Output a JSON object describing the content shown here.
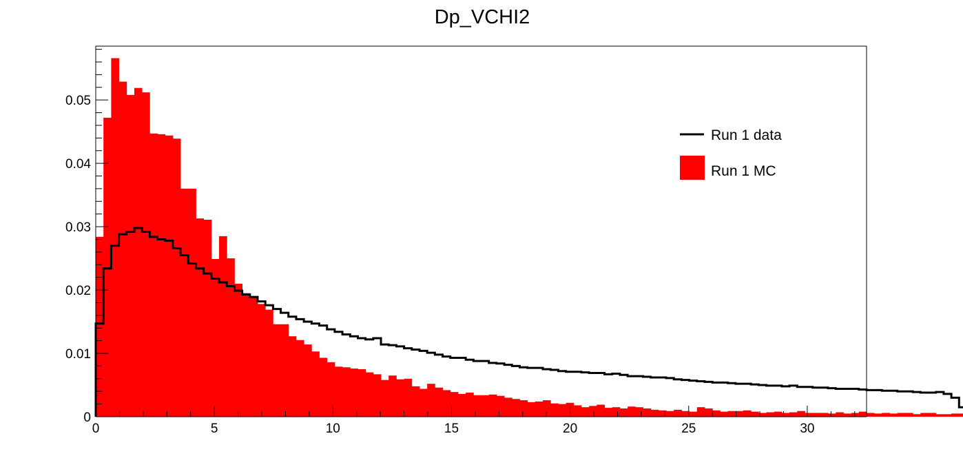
{
  "chart_data": {
    "type": "bar",
    "title": "Dp_VCHI2",
    "xlabel": "",
    "ylabel": "",
    "xlim": [
      0,
      32.5
    ],
    "ylim": [
      0,
      0.0585
    ],
    "x_ticks": [
      "0",
      "5",
      "10",
      "15",
      "20",
      "25",
      "30"
    ],
    "y_ticks": [
      "0",
      "0.01",
      "0.02",
      "0.03",
      "0.04",
      "0.05"
    ],
    "grid": false,
    "legend_position": "top-right",
    "bin_width": 0.325,
    "series": [
      {
        "name": "Run 1 data",
        "style": "step-line",
        "color": "#000000",
        "values": [
          0.0147,
          0.0234,
          0.027,
          0.0288,
          0.0292,
          0.0298,
          0.0292,
          0.0284,
          0.028,
          0.0278,
          0.0266,
          0.0255,
          0.0242,
          0.0234,
          0.0226,
          0.0218,
          0.0212,
          0.0206,
          0.0199,
          0.0193,
          0.0189,
          0.0182,
          0.0176,
          0.017,
          0.0164,
          0.0158,
          0.0154,
          0.015,
          0.0147,
          0.0144,
          0.0138,
          0.0134,
          0.013,
          0.0127,
          0.0124,
          0.0122,
          0.0124,
          0.0114,
          0.0113,
          0.0111,
          0.0108,
          0.0106,
          0.0104,
          0.0101,
          0.0098,
          0.0095,
          0.0093,
          0.0093,
          0.009,
          0.0088,
          0.0088,
          0.0085,
          0.0084,
          0.0082,
          0.008,
          0.0078,
          0.0077,
          0.0077,
          0.0075,
          0.0074,
          0.0072,
          0.0071,
          0.0071,
          0.007,
          0.0069,
          0.0069,
          0.0067,
          0.0068,
          0.0066,
          0.0064,
          0.0064,
          0.0063,
          0.0062,
          0.0062,
          0.0061,
          0.0059,
          0.0058,
          0.0057,
          0.0056,
          0.0055,
          0.0054,
          0.0054,
          0.0053,
          0.0052,
          0.0052,
          0.0051,
          0.005,
          0.0049,
          0.0049,
          0.0048,
          0.0049,
          0.0047,
          0.0047,
          0.0046,
          0.0046,
          0.0045,
          0.0044,
          0.0044,
          0.0044,
          0.0043,
          0.0042,
          0.0042,
          0.0041,
          0.0041,
          0.004,
          0.004,
          0.0039,
          0.0038,
          0.0038,
          0.0039,
          0.0036,
          0.003,
          0.0015,
          0,
          0,
          0,
          0,
          0,
          0,
          0
        ]
      },
      {
        "name": "Run 1 MC",
        "style": "filled",
        "color": "#ff0000",
        "values": [
          0.0284,
          0.0472,
          0.0566,
          0.0529,
          0.0508,
          0.0519,
          0.0512,
          0.0447,
          0.0446,
          0.0444,
          0.0439,
          0.036,
          0.036,
          0.0313,
          0.0311,
          0.0249,
          0.0285,
          0.025,
          0.021,
          0.0195,
          0.0189,
          0.0178,
          0.0169,
          0.0146,
          0.0146,
          0.0127,
          0.0121,
          0.0114,
          0.0103,
          0.0093,
          0.0086,
          0.0079,
          0.0078,
          0.0076,
          0.0075,
          0.007,
          0.0067,
          0.0058,
          0.0065,
          0.0059,
          0.006,
          0.0048,
          0.0044,
          0.0052,
          0.0046,
          0.0042,
          0.0039,
          0.0036,
          0.0038,
          0.0034,
          0.0034,
          0.0035,
          0.0033,
          0.003,
          0.0028,
          0.0026,
          0.0023,
          0.0024,
          0.0026,
          0.0021,
          0.002,
          0.0022,
          0.0018,
          0.0015,
          0.0017,
          0.0019,
          0.0014,
          0.0015,
          0.0013,
          0.0016,
          0.0015,
          0.0013,
          0.0011,
          0.001,
          0.0009,
          0.0011,
          0.0009,
          0.0008,
          0.0015,
          0.0013,
          0.001,
          0.0008,
          0.0009,
          0.0009,
          0.001,
          0.0008,
          0.0006,
          0.0007,
          0.0008,
          0.0006,
          0.0007,
          0.0009,
          0.0006,
          0.0006,
          0.0006,
          0.0005,
          0.0007,
          0.0005,
          0.0006,
          0.0008,
          0.0006,
          0.0005,
          0.0006,
          0.0005,
          0.0006,
          0.0006,
          0.0004,
          0.0006,
          0.0006,
          0.0004,
          0.0004,
          0.0005,
          0.0005,
          0.0003,
          0.0004,
          0.0004,
          0.0002,
          0.0003,
          0.0003,
          0.0004,
          0.0004,
          0.0004,
          0.0004,
          0.0003,
          0.0003,
          0.0002,
          0.0003,
          0.0003,
          0.0004,
          0.0003,
          0.0004,
          0.0004,
          0.0006,
          0.0004,
          0.0005,
          0.0003,
          0.0003,
          0.0005,
          0.0004,
          0.0003,
          0.0004,
          0.0003,
          0.0004,
          0.0003,
          0.0003,
          0.0003,
          0.0002,
          0.0003,
          0.0003,
          0.0002,
          0.0003,
          0.0003,
          0.0002,
          0.0003,
          0.0002,
          0.0001,
          0.0002,
          0.0002,
          0.0003,
          0.0002,
          0.0003,
          0.0003,
          0.0002,
          0.0001,
          0.0001,
          0.0002,
          0.0002,
          0.0002,
          0.0001,
          0.0002,
          0.0001,
          0.0002,
          0.0001,
          0.0001,
          0.0002,
          0.0002,
          0.0003,
          0.0002,
          0.0003,
          0.0003,
          0.0002,
          0.0002,
          0.0002,
          0.0002,
          0.0002,
          0.0001,
          0.0001
        ]
      }
    ]
  }
}
